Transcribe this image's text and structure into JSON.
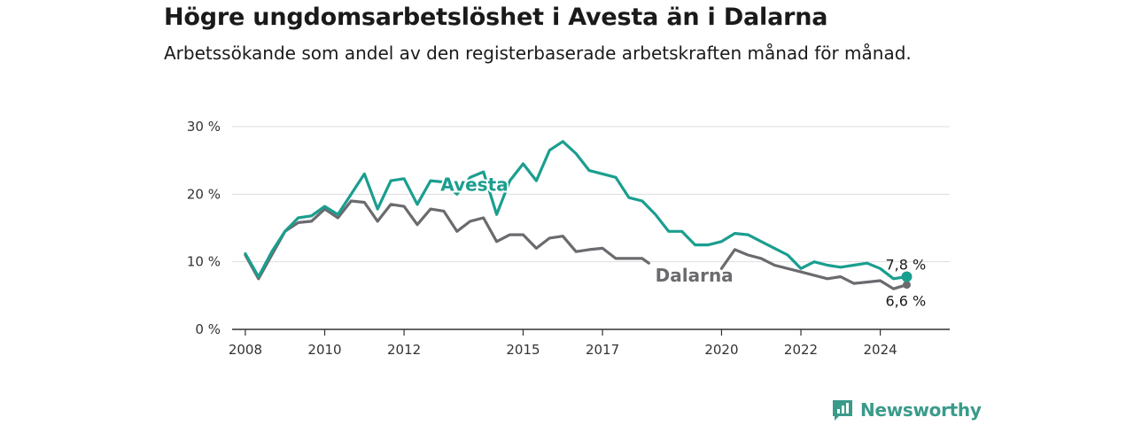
{
  "header": {
    "title": "Högre ungdomsarbetslöshet i Avesta än i Dalarna",
    "subtitle": "Arbetssökande som andel av den registerbaserade arbetskraften månad för månad."
  },
  "brand": {
    "name": "Newsworthy",
    "icon": "newsworthy-logo-icon",
    "color": "#3a9b8b"
  },
  "chart_data": {
    "type": "line",
    "x_ticks": [
      "2008",
      "2010",
      "2012",
      "2015",
      "2017",
      "2020",
      "2022",
      "2024"
    ],
    "y_ticks": [
      "0 %",
      "10 %",
      "20 %",
      "30 %"
    ],
    "ylim": [
      0,
      30
    ],
    "grid": true,
    "series": [
      {
        "name": "Avesta",
        "color": "#1a9e8f",
        "end_label": "7,8 %",
        "points": [
          [
            "2008-01",
            11.2
          ],
          [
            "2008-05",
            7.8
          ],
          [
            "2008-09",
            11.5
          ],
          [
            "2009-01",
            14.5
          ],
          [
            "2009-05",
            16.5
          ],
          [
            "2009-09",
            16.8
          ],
          [
            "2010-01",
            18.2
          ],
          [
            "2010-05",
            17.0
          ],
          [
            "2010-09",
            20.0
          ],
          [
            "2011-01",
            23.0
          ],
          [
            "2011-05",
            17.8
          ],
          [
            "2011-09",
            22.0
          ],
          [
            "2012-01",
            22.3
          ],
          [
            "2012-05",
            18.5
          ],
          [
            "2012-09",
            22.0
          ],
          [
            "2013-01",
            21.8
          ],
          [
            "2013-05",
            20.0
          ],
          [
            "2013-09",
            22.5
          ],
          [
            "2014-01",
            23.3
          ],
          [
            "2014-05",
            17.0
          ],
          [
            "2014-09",
            22.0
          ],
          [
            "2015-01",
            24.5
          ],
          [
            "2015-05",
            22.0
          ],
          [
            "2015-09",
            26.5
          ],
          [
            "2016-01",
            27.8
          ],
          [
            "2016-05",
            26.0
          ],
          [
            "2016-09",
            23.5
          ],
          [
            "2017-01",
            23.0
          ],
          [
            "2017-05",
            22.5
          ],
          [
            "2017-09",
            19.5
          ],
          [
            "2018-01",
            19.0
          ],
          [
            "2018-05",
            17.0
          ],
          [
            "2018-09",
            14.5
          ],
          [
            "2019-01",
            14.5
          ],
          [
            "2019-05",
            12.5
          ],
          [
            "2019-09",
            12.5
          ],
          [
            "2020-01",
            13.0
          ],
          [
            "2020-05",
            14.2
          ],
          [
            "2020-09",
            14.0
          ],
          [
            "2021-01",
            13.0
          ],
          [
            "2021-05",
            12.0
          ],
          [
            "2021-09",
            11.0
          ],
          [
            "2022-01",
            9.0
          ],
          [
            "2022-05",
            10.0
          ],
          [
            "2022-09",
            9.5
          ],
          [
            "2023-01",
            9.2
          ],
          [
            "2023-05",
            9.5
          ],
          [
            "2023-09",
            9.8
          ],
          [
            "2024-01",
            9.0
          ],
          [
            "2024-05",
            7.5
          ],
          [
            "2024-09",
            7.8
          ]
        ]
      },
      {
        "name": "Dalarna",
        "color": "#6b6b6f",
        "end_label": "6,6 %",
        "points": [
          [
            "2008-01",
            11.0
          ],
          [
            "2008-05",
            7.5
          ],
          [
            "2008-09",
            11.0
          ],
          [
            "2009-01",
            14.5
          ],
          [
            "2009-05",
            15.8
          ],
          [
            "2009-09",
            16.0
          ],
          [
            "2010-01",
            17.8
          ],
          [
            "2010-05",
            16.5
          ],
          [
            "2010-09",
            19.0
          ],
          [
            "2011-01",
            18.8
          ],
          [
            "2011-05",
            16.0
          ],
          [
            "2011-09",
            18.5
          ],
          [
            "2012-01",
            18.2
          ],
          [
            "2012-05",
            15.5
          ],
          [
            "2012-09",
            17.8
          ],
          [
            "2013-01",
            17.5
          ],
          [
            "2013-05",
            14.5
          ],
          [
            "2013-09",
            16.0
          ],
          [
            "2014-01",
            16.5
          ],
          [
            "2014-05",
            13.0
          ],
          [
            "2014-09",
            14.0
          ],
          [
            "2015-01",
            14.0
          ],
          [
            "2015-05",
            12.0
          ],
          [
            "2015-09",
            13.5
          ],
          [
            "2016-01",
            13.8
          ],
          [
            "2016-05",
            11.5
          ],
          [
            "2016-09",
            11.8
          ],
          [
            "2017-01",
            12.0
          ],
          [
            "2017-05",
            10.5
          ],
          [
            "2017-09",
            10.5
          ],
          [
            "2018-01",
            10.5
          ],
          [
            "2018-03",
            9.8
          ],
          null,
          [
            "2020-01",
            9.0
          ],
          [
            "2020-05",
            11.8
          ],
          [
            "2020-09",
            11.0
          ],
          [
            "2021-01",
            10.5
          ],
          [
            "2021-05",
            9.5
          ],
          [
            "2021-09",
            9.0
          ],
          [
            "2022-01",
            8.5
          ],
          [
            "2022-05",
            8.0
          ],
          [
            "2022-09",
            7.5
          ],
          [
            "2023-01",
            7.8
          ],
          [
            "2023-05",
            6.8
          ],
          [
            "2023-09",
            7.0
          ],
          [
            "2024-01",
            7.2
          ],
          [
            "2024-05",
            6.0
          ],
          [
            "2024-09",
            6.6
          ]
        ]
      }
    ]
  }
}
